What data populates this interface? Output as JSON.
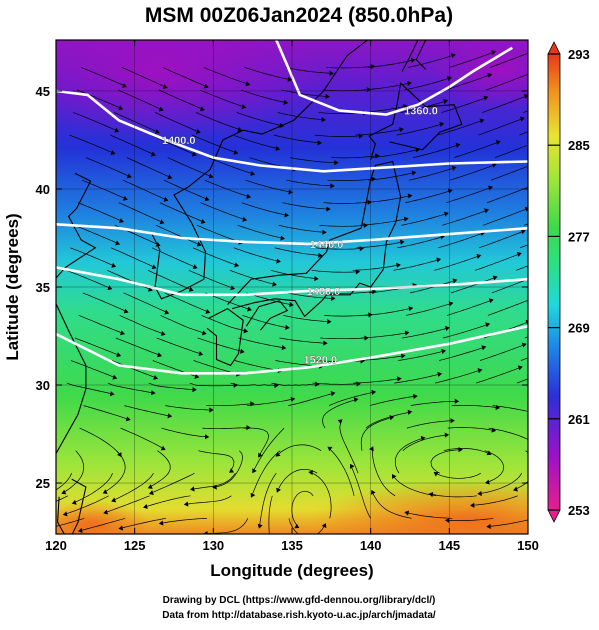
{
  "figure": {
    "title": "MSM 00Z06Jan2024 (850.0hPa)",
    "xlabel": "Longitude (degrees)",
    "ylabel": "Latitude  (degrees)",
    "credit_line1": "Drawing by DCL (https://www.gfd-dennou.org/library/dcl/)",
    "credit_line2": "Data from http://database.rish.kyoto-u.ac.jp/arch/jmadata/"
  },
  "map": {
    "lon_range": [
      120,
      150
    ],
    "lat_range": [
      22.4,
      47.6
    ],
    "x_ticks": [
      "120",
      "125",
      "130",
      "135",
      "140",
      "145",
      "150"
    ],
    "y_ticks": [
      "25",
      "30",
      "35",
      "40",
      "45"
    ],
    "contour_labels": [
      "1400.0",
      "1360.0",
      "1440.0",
      "1480.0",
      "1520.0"
    ],
    "colorbar_ticks": [
      "293",
      "285",
      "277",
      "269",
      "261",
      "253"
    ],
    "colorbar_range": [
      253,
      293
    ],
    "colors": {
      "warm": "#e8611c",
      "yellow": "#e8e432",
      "green": "#3ad94a",
      "cyan": "#1fe0d8",
      "blue": "#2437d8",
      "purple": "#9a12c8",
      "contour": "#ffffff",
      "vectors": "#000000"
    },
    "layers": [
      "temperature-shading",
      "streamlines",
      "geopotential-contours",
      "coastlines"
    ]
  }
}
